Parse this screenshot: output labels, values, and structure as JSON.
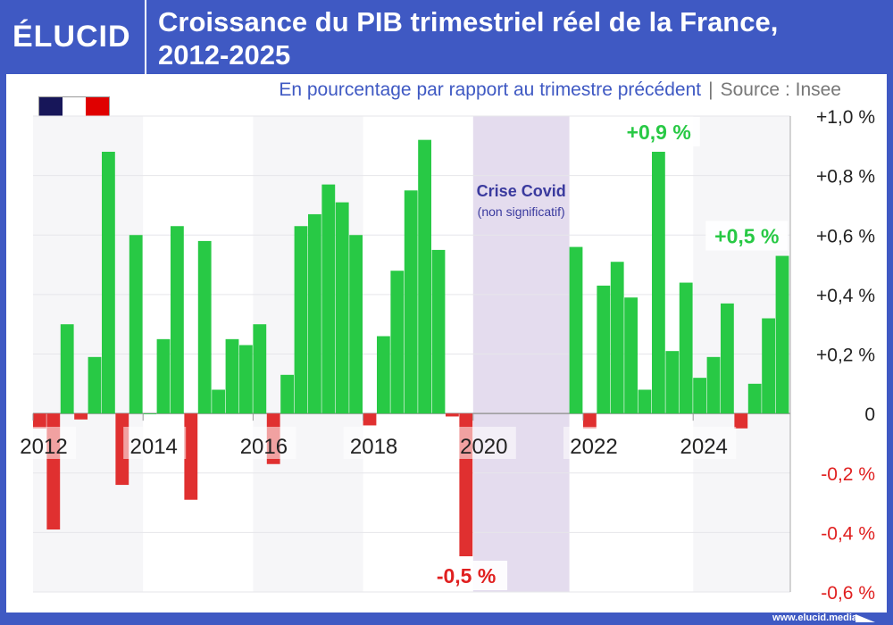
{
  "header": {
    "logo": "ÉLUCID",
    "title_line1": "Croissance du PIB trimestriel réel de la France,",
    "title_line2": "2012-2025"
  },
  "subtitle": {
    "text": "En pourcentage par rapport au trimestre précédent",
    "separator": "|",
    "source": "Source : Insee"
  },
  "flag": {
    "colors": [
      "#171659",
      "#ffffff",
      "#e00000"
    ]
  },
  "footer": {
    "url": "www.elucid.media"
  },
  "colors": {
    "frame": "#3f59c3",
    "positive": "#28c945",
    "negative": "#e03030",
    "covid_band": "#e4dcee",
    "covid_text": "#3a3a9e"
  },
  "chart_data": {
    "type": "bar",
    "xlabel": "",
    "ylabel": "",
    "ylim": [
      -0.6,
      1.0
    ],
    "grid": true,
    "y_ticks": [
      {
        "value": 1.0,
        "label": "+1,0 %"
      },
      {
        "value": 0.8,
        "label": "+0,8 %"
      },
      {
        "value": 0.6,
        "label": "+0,6 %"
      },
      {
        "value": 0.4,
        "label": "+0,4 %"
      },
      {
        "value": 0.2,
        "label": "+0,2 %"
      },
      {
        "value": 0,
        "label": "0"
      },
      {
        "value": -0.2,
        "label": "-0,2 %"
      },
      {
        "value": -0.4,
        "label": "-0,4 %"
      },
      {
        "value": -0.6,
        "label": "-0,6 %"
      }
    ],
    "x_ticks": [
      "2012",
      "2014",
      "2016",
      "2018",
      "2020",
      "2022",
      "2024"
    ],
    "start_year": 2012,
    "values": [
      -0.05,
      -0.39,
      0.3,
      -0.02,
      0.19,
      0.88,
      -0.24,
      0.6,
      0.0,
      0.25,
      0.63,
      -0.29,
      0.58,
      0.08,
      0.25,
      0.23,
      0.3,
      -0.17,
      0.13,
      0.63,
      0.67,
      0.77,
      0.71,
      0.6,
      -0.04,
      0.26,
      0.48,
      0.75,
      0.92,
      0.55,
      -0.01,
      -0.48,
      null,
      null,
      null,
      null,
      null,
      null,
      null,
      0.56,
      -0.05,
      0.43,
      0.51,
      0.39,
      0.08,
      0.88,
      0.21,
      0.44,
      0.12,
      0.19,
      0.37,
      -0.05,
      0.1,
      0.32,
      0.53
    ],
    "covid": {
      "label": "Crise Covid",
      "sublabel": "(non significatif)",
      "from": "2020-Q1",
      "to": "2021-Q3"
    },
    "annotations": [
      {
        "label": "+0,9 %",
        "quarter": "2023-Q2"
      },
      {
        "label": "+0,5 %",
        "quarter": "2025-Q3"
      },
      {
        "label": "-0,5 %",
        "quarter": "2019-Q4"
      }
    ]
  }
}
